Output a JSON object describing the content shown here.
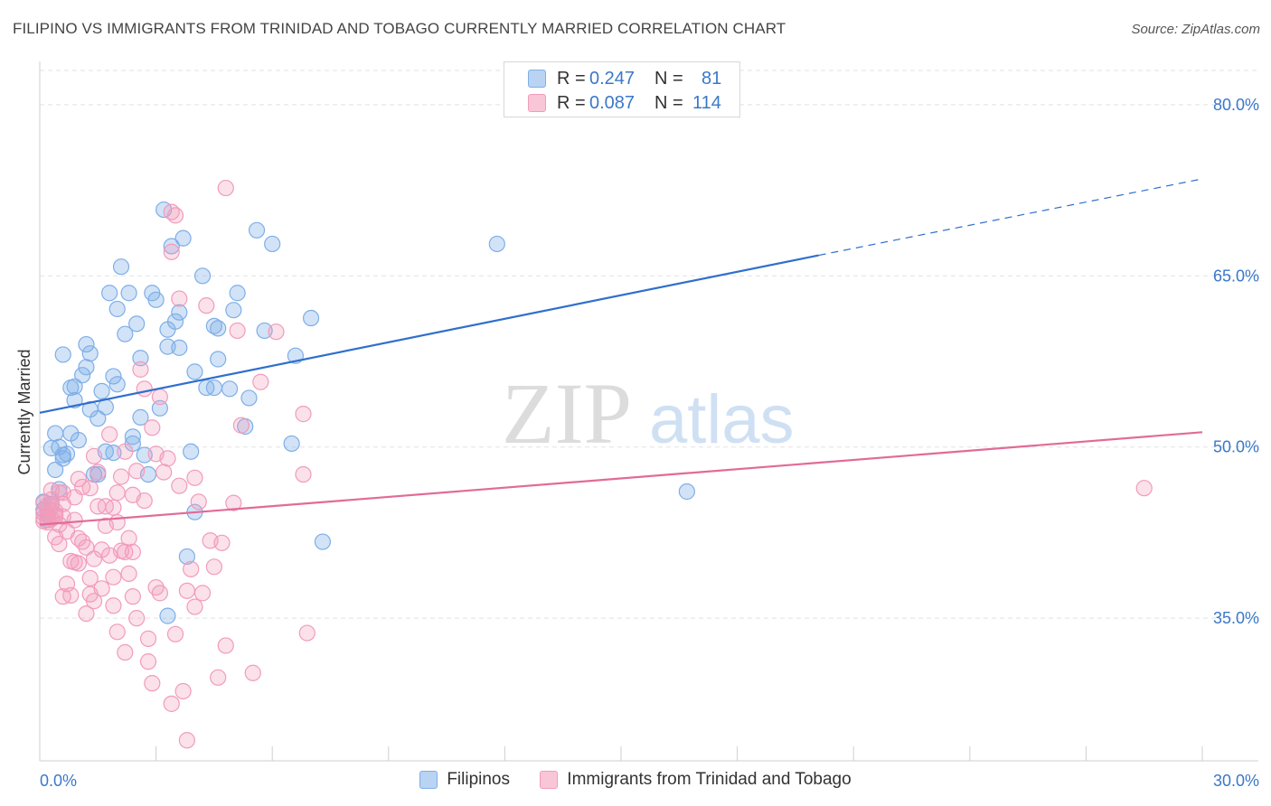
{
  "header": {
    "title": "FILIPINO VS IMMIGRANTS FROM TRINIDAD AND TOBAGO CURRENTLY MARRIED CORRELATION CHART",
    "source": "Source: ZipAtlas.com"
  },
  "watermark": {
    "part1": "ZIP",
    "part2": "atlas"
  },
  "legend_stats": [
    {
      "r_label": "R =",
      "r_value": "0.247",
      "n_label": "N =",
      "n_value": "81",
      "color": "#7eaee8"
    },
    {
      "r_label": "R =",
      "r_value": "0.087",
      "n_label": "N =",
      "n_value": "114",
      "color": "#f29bbb"
    }
  ],
  "chart_data": {
    "type": "scatter",
    "title": "FILIPINO VS IMMIGRANTS FROM TRINIDAD AND TOBAGO CURRENTLY MARRIED CORRELATION CHART",
    "xlabel": "",
    "ylabel": "Currently Married",
    "xlim": [
      0,
      30
    ],
    "ylim": [
      22.5,
      83
    ],
    "x_tick_labels": [
      "0.0%",
      "30.0%"
    ],
    "y_ticks": [
      35,
      50,
      65,
      80
    ],
    "y_tick_labels": [
      "35.0%",
      "50.0%",
      "65.0%",
      "80.0%"
    ],
    "grid": true,
    "legend_position": "bottom",
    "series": [
      {
        "name": "Filipinos",
        "color": "#7eaee8",
        "line_color": "#2f6fcc",
        "trend": {
          "x0": 0,
          "y0": 53.0,
          "x1": 20.1,
          "y1": 66.8,
          "dash_x1": 30,
          "dash_y1": 73.5
        },
        "points": [
          [
            0.1,
            44.5
          ],
          [
            0.1,
            45.2
          ],
          [
            0.2,
            44.0
          ],
          [
            0.2,
            43.6
          ],
          [
            0.3,
            45.0
          ],
          [
            0.3,
            49.9
          ],
          [
            0.4,
            51.2
          ],
          [
            0.4,
            48.0
          ],
          [
            0.5,
            50.0
          ],
          [
            0.5,
            46.3
          ],
          [
            0.6,
            49.3
          ],
          [
            0.6,
            49.0
          ],
          [
            0.7,
            49.4
          ],
          [
            0.8,
            51.2
          ],
          [
            0.8,
            55.2
          ],
          [
            0.9,
            54.1
          ],
          [
            0.9,
            55.3
          ],
          [
            1.0,
            50.6
          ],
          [
            1.1,
            56.3
          ],
          [
            1.2,
            57.0
          ],
          [
            1.2,
            59.0
          ],
          [
            1.3,
            58.2
          ],
          [
            1.3,
            53.3
          ],
          [
            1.4,
            47.6
          ],
          [
            1.5,
            47.6
          ],
          [
            1.5,
            52.5
          ],
          [
            1.6,
            54.9
          ],
          [
            1.7,
            49.6
          ],
          [
            1.7,
            53.5
          ],
          [
            1.8,
            63.5
          ],
          [
            1.9,
            56.2
          ],
          [
            1.9,
            49.5
          ],
          [
            2.0,
            55.5
          ],
          [
            2.0,
            62.1
          ],
          [
            2.1,
            65.8
          ],
          [
            2.2,
            59.9
          ],
          [
            2.3,
            63.5
          ],
          [
            2.4,
            50.3
          ],
          [
            2.4,
            50.9
          ],
          [
            2.5,
            60.8
          ],
          [
            2.6,
            57.8
          ],
          [
            2.6,
            52.6
          ],
          [
            2.7,
            49.3
          ],
          [
            2.8,
            47.6
          ],
          [
            2.9,
            63.5
          ],
          [
            3.0,
            62.9
          ],
          [
            3.1,
            53.4
          ],
          [
            3.2,
            70.8
          ],
          [
            3.3,
            58.8
          ],
          [
            3.3,
            60.3
          ],
          [
            3.4,
            67.6
          ],
          [
            3.5,
            61.0
          ],
          [
            3.6,
            61.8
          ],
          [
            3.6,
            58.7
          ],
          [
            3.7,
            68.3
          ],
          [
            3.8,
            40.4
          ],
          [
            3.9,
            49.6
          ],
          [
            4.0,
            56.6
          ],
          [
            4.0,
            44.3
          ],
          [
            4.2,
            65.0
          ],
          [
            4.3,
            55.2
          ],
          [
            4.5,
            55.2
          ],
          [
            4.5,
            60.6
          ],
          [
            4.6,
            57.7
          ],
          [
            4.6,
            60.4
          ],
          [
            4.9,
            55.1
          ],
          [
            5.0,
            62.0
          ],
          [
            5.1,
            63.5
          ],
          [
            5.3,
            51.8
          ],
          [
            5.4,
            54.3
          ],
          [
            5.6,
            69.0
          ],
          [
            5.8,
            60.2
          ],
          [
            6.0,
            67.8
          ],
          [
            6.5,
            50.3
          ],
          [
            6.6,
            58.0
          ],
          [
            7.0,
            61.3
          ],
          [
            7.3,
            41.7
          ],
          [
            11.8,
            67.8
          ],
          [
            16.7,
            46.1
          ],
          [
            3.3,
            35.2
          ],
          [
            0.6,
            58.1
          ]
        ]
      },
      {
        "name": "Immigrants from Trinidad and Tobago",
        "color": "#f29bbb",
        "line_color": "#e16b97",
        "trend": {
          "x0": 0,
          "y0": 43.2,
          "x1": 30,
          "y1": 51.3
        },
        "points": [
          [
            0.1,
            44.2
          ],
          [
            0.1,
            43.8
          ],
          [
            0.1,
            45.1
          ],
          [
            0.2,
            44.6
          ],
          [
            0.2,
            44.0
          ],
          [
            0.2,
            43.4
          ],
          [
            0.3,
            44.8
          ],
          [
            0.3,
            45.4
          ],
          [
            0.3,
            46.2
          ],
          [
            0.4,
            43.9
          ],
          [
            0.4,
            44.4
          ],
          [
            0.4,
            42.1
          ],
          [
            0.5,
            41.5
          ],
          [
            0.5,
            43.2
          ],
          [
            0.6,
            45.0
          ],
          [
            0.6,
            46.0
          ],
          [
            0.7,
            42.6
          ],
          [
            0.7,
            38.0
          ],
          [
            0.8,
            37.0
          ],
          [
            0.8,
            40.0
          ],
          [
            0.9,
            45.6
          ],
          [
            0.9,
            39.9
          ],
          [
            1.0,
            47.2
          ],
          [
            1.0,
            42.0
          ],
          [
            1.1,
            46.5
          ],
          [
            1.1,
            41.7
          ],
          [
            1.2,
            41.2
          ],
          [
            1.2,
            35.4
          ],
          [
            1.3,
            37.1
          ],
          [
            1.3,
            38.5
          ],
          [
            1.4,
            40.2
          ],
          [
            1.4,
            49.2
          ],
          [
            1.5,
            44.8
          ],
          [
            1.5,
            47.8
          ],
          [
            1.6,
            41.0
          ],
          [
            1.6,
            37.6
          ],
          [
            1.7,
            43.1
          ],
          [
            1.7,
            44.8
          ],
          [
            1.8,
            51.1
          ],
          [
            1.8,
            40.5
          ],
          [
            1.9,
            36.1
          ],
          [
            1.9,
            38.6
          ],
          [
            2.0,
            33.8
          ],
          [
            2.0,
            43.4
          ],
          [
            2.1,
            40.9
          ],
          [
            2.1,
            47.4
          ],
          [
            2.2,
            49.6
          ],
          [
            2.2,
            40.8
          ],
          [
            2.3,
            38.9
          ],
          [
            2.3,
            42.0
          ],
          [
            2.4,
            36.9
          ],
          [
            2.4,
            40.8
          ],
          [
            2.5,
            35.0
          ],
          [
            2.5,
            47.9
          ],
          [
            2.6,
            56.8
          ],
          [
            2.7,
            55.1
          ],
          [
            2.8,
            33.2
          ],
          [
            2.8,
            31.2
          ],
          [
            2.9,
            51.7
          ],
          [
            3.0,
            49.4
          ],
          [
            3.0,
            37.7
          ],
          [
            3.1,
            54.4
          ],
          [
            3.1,
            37.2
          ],
          [
            3.2,
            47.8
          ],
          [
            3.3,
            49.0
          ],
          [
            3.4,
            27.5
          ],
          [
            3.5,
            70.3
          ],
          [
            3.5,
            33.6
          ],
          [
            3.6,
            63.0
          ],
          [
            3.7,
            28.6
          ],
          [
            3.8,
            37.4
          ],
          [
            3.8,
            24.3
          ],
          [
            3.9,
            39.3
          ],
          [
            4.0,
            36.0
          ],
          [
            4.1,
            45.2
          ],
          [
            4.2,
            37.2
          ],
          [
            4.3,
            62.4
          ],
          [
            4.4,
            41.8
          ],
          [
            4.5,
            39.5
          ],
          [
            4.6,
            29.8
          ],
          [
            4.7,
            41.6
          ],
          [
            4.8,
            32.6
          ],
          [
            5.0,
            45.1
          ],
          [
            5.1,
            60.2
          ],
          [
            5.2,
            51.9
          ],
          [
            5.5,
            30.2
          ],
          [
            5.7,
            55.7
          ],
          [
            6.1,
            60.1
          ],
          [
            6.8,
            52.9
          ],
          [
            6.9,
            33.7
          ],
          [
            6.8,
            47.6
          ],
          [
            4.8,
            72.7
          ],
          [
            3.4,
            67.1
          ],
          [
            3.4,
            70.6
          ],
          [
            2.9,
            29.3
          ],
          [
            2.2,
            32.0
          ],
          [
            1.4,
            36.5
          ],
          [
            1.0,
            39.8
          ],
          [
            0.6,
            36.9
          ],
          [
            2.7,
            45.3
          ],
          [
            3.6,
            46.6
          ],
          [
            4.0,
            47.3
          ],
          [
            1.9,
            44.7
          ],
          [
            2.4,
            45.8
          ],
          [
            0.9,
            43.6
          ],
          [
            1.3,
            46.4
          ],
          [
            0.5,
            46.0
          ],
          [
            2.0,
            46.0
          ],
          [
            0.3,
            43.7
          ],
          [
            0.2,
            44.9
          ],
          [
            0.4,
            44.1
          ],
          [
            0.1,
            43.5
          ],
          [
            0.6,
            43.9
          ],
          [
            28.5,
            46.4
          ]
        ]
      }
    ]
  },
  "legend_bottom": [
    {
      "label": "Filipinos",
      "color": "#7eaee8"
    },
    {
      "label": "Immigrants from Trinidad and Tobago",
      "color": "#f29bbb"
    }
  ]
}
